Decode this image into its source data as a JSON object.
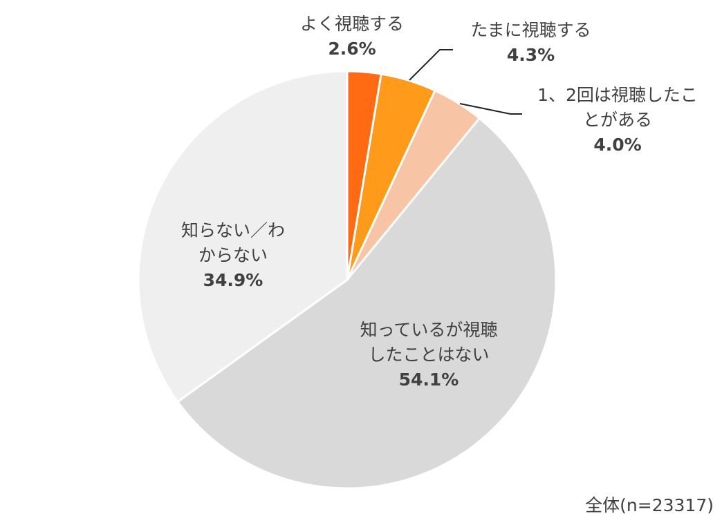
{
  "chart_data": {
    "type": "pie",
    "start_angle": "12 o'clock",
    "direction": "clockwise",
    "slices": [
      {
        "label": "よく視聴する",
        "lines": [
          "よく視聴する"
        ],
        "value": 2.6,
        "value_label": "2.6%",
        "color": "#ff6a13"
      },
      {
        "label": "たまに視聴する",
        "lines": [
          "たまに視聴する"
        ],
        "value": 4.3,
        "value_label": "4.3%",
        "color": "#ff9a1a"
      },
      {
        "label": "1、2回は視聴したことがある",
        "lines": [
          "1、2回は視聴したこ",
          "とがある"
        ],
        "value": 4.0,
        "value_label": "4.0%",
        "color": "#f8c4a6"
      },
      {
        "label": "知っているが視聴したことはない",
        "lines": [
          "知っているが視聴",
          "したことはない"
        ],
        "value": 54.1,
        "value_label": "54.1%",
        "color": "#d9d9d9"
      },
      {
        "label": "知らない／わからない",
        "lines": [
          "知らない／わ",
          "からない"
        ],
        "value": 34.9,
        "value_label": "34.9%",
        "color": "#efefef"
      }
    ],
    "footnote": "全体(n=23317)"
  }
}
